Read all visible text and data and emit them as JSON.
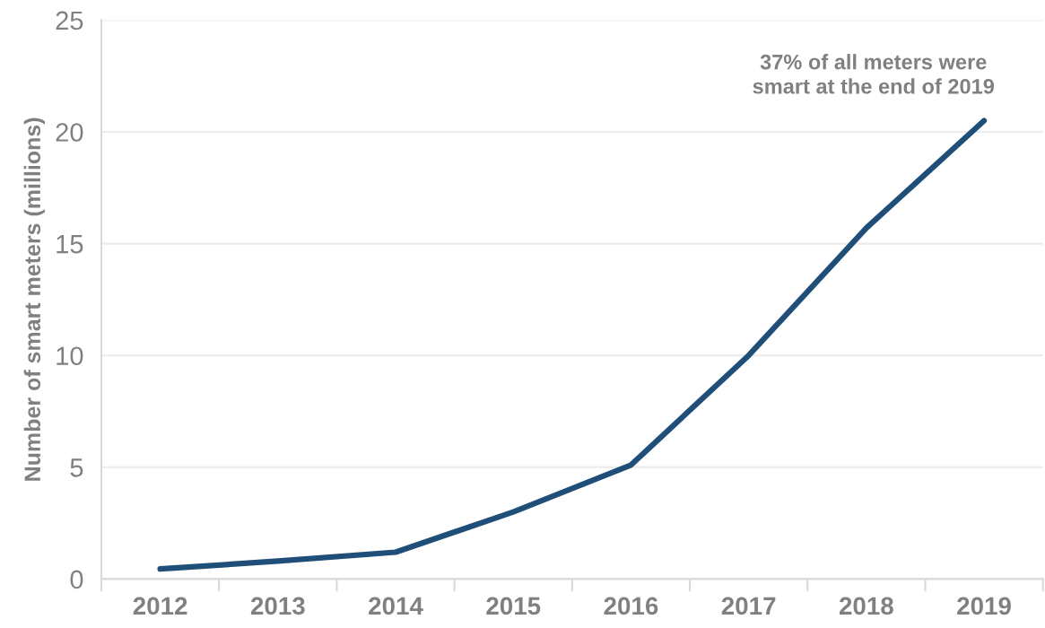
{
  "chart_data": {
    "type": "line",
    "ylabel": "Number of smart meters (millions)",
    "categories": [
      "2012",
      "2013",
      "2014",
      "2015",
      "2016",
      "2017",
      "2018",
      "2019"
    ],
    "series": [
      {
        "color": "#1f4e79",
        "values": [
          0.45,
          0.8,
          1.2,
          3.0,
          5.1,
          10.0,
          15.7,
          20.5
        ]
      }
    ],
    "ylim": [
      0,
      25
    ],
    "yticks": [
      0,
      5,
      10,
      15,
      20,
      25
    ],
    "grid": "y",
    "marker": "none",
    "line_style": "solid",
    "annotations": [
      "37% of all meters were\nsmart at the end of 2019"
    ]
  }
}
